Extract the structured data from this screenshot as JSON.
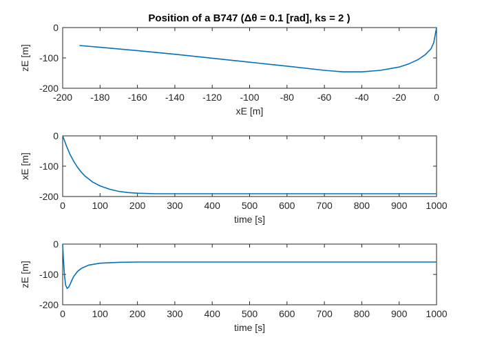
{
  "title": "Position of a B747 (Δθ = 0.1 [rad], ks = 2 )",
  "colors": {
    "series": "#0072BD",
    "axes": "#262626"
  },
  "chart_data": [
    {
      "type": "line",
      "xlabel": "xE [m]",
      "ylabel": "zE [m]",
      "xlim": [
        -200,
        0
      ],
      "ylim": [
        -200,
        0
      ],
      "xticks": [
        -200,
        -180,
        -160,
        -140,
        -120,
        -100,
        -80,
        -60,
        -40,
        -20,
        0
      ],
      "yticks": [
        -200,
        -100,
        0
      ],
      "x_tick_labels": [
        "-200",
        "-180",
        "-160",
        "-140",
        "-120",
        "-100",
        "-80",
        "-60",
        "-40",
        "-20",
        "0"
      ],
      "y_tick_labels": [
        "-200",
        "-100",
        "0"
      ],
      "grid": false,
      "series": [
        {
          "x": [
            -191,
            -180,
            -160,
            -140,
            -120,
            -100,
            -80,
            -60,
            -50,
            -40,
            -30,
            -20,
            -15,
            -10,
            -6,
            -3,
            -1.5,
            0
          ],
          "y": [
            -59,
            -65,
            -76,
            -88,
            -101,
            -114,
            -127,
            -141,
            -146,
            -146,
            -141,
            -130,
            -120,
            -106,
            -89,
            -70,
            -50,
            0
          ]
        }
      ]
    },
    {
      "type": "line",
      "xlabel": "time [s]",
      "ylabel": "xE [m]",
      "xlim": [
        0,
        1000
      ],
      "ylim": [
        -200,
        0
      ],
      "xticks": [
        0,
        100,
        200,
        300,
        400,
        500,
        600,
        700,
        800,
        900,
        1000
      ],
      "yticks": [
        -200,
        -100,
        0
      ],
      "x_tick_labels": [
        "0",
        "100",
        "200",
        "300",
        "400",
        "500",
        "600",
        "700",
        "800",
        "900",
        "1000"
      ],
      "y_tick_labels": [
        "-200",
        "-100",
        "0"
      ],
      "grid": false,
      "series": [
        {
          "x": [
            0,
            5,
            10,
            20,
            30,
            40,
            50,
            60,
            80,
            100,
            125,
            150,
            175,
            200,
            250,
            300,
            400,
            600,
            1000
          ],
          "y": [
            0,
            -16,
            -33,
            -62,
            -85,
            -104,
            -120,
            -133,
            -152,
            -165,
            -176,
            -183,
            -187,
            -189,
            -191,
            -191,
            -191,
            -191,
            -191
          ]
        }
      ]
    },
    {
      "type": "line",
      "xlabel": "time [s]",
      "ylabel": "zE [m]",
      "xlim": [
        0,
        1000
      ],
      "ylim": [
        -200,
        0
      ],
      "xticks": [
        0,
        100,
        200,
        300,
        400,
        500,
        600,
        700,
        800,
        900,
        1000
      ],
      "yticks": [
        -200,
        -100,
        0
      ],
      "x_tick_labels": [
        "0",
        "100",
        "200",
        "300",
        "400",
        "500",
        "600",
        "700",
        "800",
        "900",
        "1000"
      ],
      "y_tick_labels": [
        "-200",
        "-100",
        "0"
      ],
      "grid": false,
      "series": [
        {
          "x": [
            0,
            2,
            5,
            8,
            12,
            16,
            20,
            25,
            30,
            40,
            50,
            70,
            100,
            150,
            200,
            300,
            500,
            1000
          ],
          "y": [
            0,
            -50,
            -105,
            -135,
            -146,
            -142,
            -132,
            -118,
            -106,
            -90,
            -80,
            -69,
            -63,
            -60,
            -59,
            -59,
            -59,
            -59
          ]
        }
      ]
    }
  ]
}
